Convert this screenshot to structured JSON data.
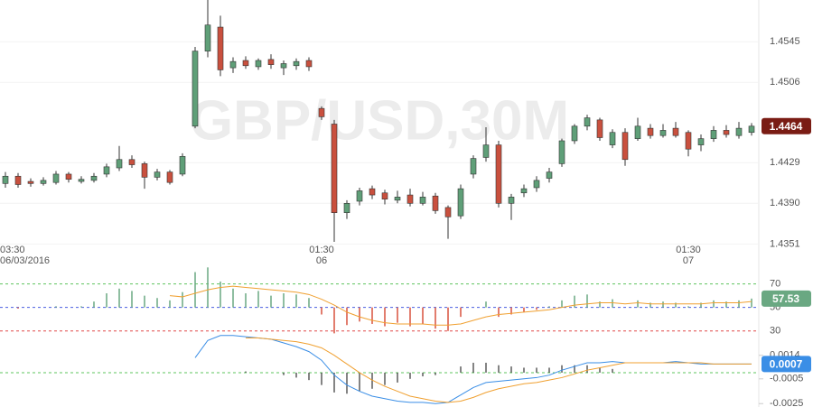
{
  "chart_data": [
    {
      "type": "candlestick",
      "title": "GBP/USD,30M",
      "categories": [
        "03:30",
        null,
        null,
        null,
        null,
        null,
        null,
        null,
        null,
        null,
        null,
        null,
        null,
        null,
        null,
        null,
        null,
        null,
        null,
        null,
        null,
        null,
        null,
        null,
        null,
        "01:30",
        null,
        null,
        null,
        null,
        null,
        null,
        null,
        null,
        null,
        null,
        null,
        null,
        null,
        null,
        null,
        null,
        null,
        null,
        null,
        null,
        null,
        null,
        null,
        null,
        null,
        null,
        null,
        null,
        "01:30",
        null,
        null,
        null,
        null,
        null
      ],
      "date_labels": [
        "06/03/2016",
        null,
        null,
        null,
        null,
        null,
        null,
        null,
        null,
        null,
        null,
        null,
        null,
        null,
        null,
        null,
        null,
        null,
        null,
        null,
        null,
        null,
        null,
        null,
        null,
        "06",
        null,
        null,
        null,
        null,
        null,
        null,
        null,
        null,
        null,
        null,
        null,
        null,
        null,
        null,
        null,
        null,
        null,
        null,
        null,
        null,
        null,
        null,
        null,
        null,
        null,
        null,
        null,
        null,
        "07",
        null,
        null,
        null,
        null,
        null
      ],
      "open": [
        1.4409,
        1.4416,
        1.4411,
        1.4409,
        1.441,
        1.4418,
        1.4411,
        1.4412,
        1.4418,
        1.4424,
        1.4432,
        1.4428,
        1.4415,
        1.442,
        1.4418,
        1.4464,
        1.4536,
        1.4559,
        1.452,
        1.4527,
        1.4521,
        1.4528,
        1.452,
        1.4522,
        1.4527,
        1.4481,
        1.4466,
        1.4381,
        1.4392,
        1.4404,
        1.44,
        1.4393,
        1.4398,
        1.439,
        1.4397,
        1.4386,
        1.4378,
        1.4418,
        1.4434,
        1.4446,
        1.439,
        1.44,
        1.4405,
        1.4414,
        1.4428,
        1.445,
        1.4464,
        1.447,
        1.4446,
        1.4458,
        1.4452,
        1.4462,
        1.4455,
        1.4462,
        1.4458,
        1.4446,
        1.4452,
        1.446,
        1.4455,
        1.4458
      ],
      "high": [
        1.442,
        1.4419,
        1.4414,
        1.4415,
        1.4421,
        1.442,
        1.4416,
        1.4419,
        1.4428,
        1.4445,
        1.4436,
        1.443,
        1.4423,
        1.4422,
        1.4438,
        1.454,
        1.4585,
        1.457,
        1.453,
        1.4531,
        1.4529,
        1.4533,
        1.4527,
        1.4529,
        1.453,
        1.4483,
        1.447,
        1.4393,
        1.4405,
        1.4407,
        1.4403,
        1.4402,
        1.4404,
        1.4401,
        1.44,
        1.4388,
        1.4408,
        1.4436,
        1.4463,
        1.445,
        1.4399,
        1.4408,
        1.4416,
        1.4424,
        1.4452,
        1.4466,
        1.4475,
        1.4472,
        1.4461,
        1.4462,
        1.4472,
        1.4466,
        1.4466,
        1.4468,
        1.446,
        1.4456,
        1.4464,
        1.4465,
        1.4468,
        1.4467
      ],
      "low": [
        1.4405,
        1.4405,
        1.4406,
        1.4407,
        1.4408,
        1.441,
        1.4409,
        1.441,
        1.4415,
        1.4421,
        1.4424,
        1.4404,
        1.4412,
        1.4408,
        1.4416,
        1.4462,
        1.453,
        1.4512,
        1.4515,
        1.4519,
        1.4518,
        1.4519,
        1.4513,
        1.4518,
        1.4517,
        1.447,
        1.4353,
        1.4375,
        1.4388,
        1.4394,
        1.4389,
        1.439,
        1.4387,
        1.4388,
        1.438,
        1.4356,
        1.4375,
        1.4414,
        1.443,
        1.4386,
        1.4374,
        1.4396,
        1.4401,
        1.441,
        1.4425,
        1.4447,
        1.446,
        1.445,
        1.4443,
        1.4426,
        1.445,
        1.4452,
        1.4453,
        1.4453,
        1.4435,
        1.444,
        1.4449,
        1.4453,
        1.4452,
        1.4455
      ],
      "close": [
        1.4416,
        1.4408,
        1.4409,
        1.4412,
        1.4418,
        1.4413,
        1.4413,
        1.4416,
        1.4425,
        1.4432,
        1.4427,
        1.4415,
        1.442,
        1.441,
        1.4435,
        1.4536,
        1.4561,
        1.4518,
        1.4526,
        1.4522,
        1.4527,
        1.4523,
        1.4524,
        1.4526,
        1.4521,
        1.4473,
        1.4381,
        1.439,
        1.4402,
        1.4398,
        1.4394,
        1.4396,
        1.439,
        1.4396,
        1.4383,
        1.4377,
        1.4404,
        1.4433,
        1.4446,
        1.439,
        1.4396,
        1.4404,
        1.4412,
        1.442,
        1.445,
        1.4464,
        1.4472,
        1.4453,
        1.4458,
        1.4432,
        1.4464,
        1.4455,
        1.446,
        1.4455,
        1.4442,
        1.4452,
        1.446,
        1.4456,
        1.4462,
        1.4464
      ],
      "ylim": [
        1.4334,
        1.4585
      ],
      "yticks": [
        1.4351,
        {
          "value": 1.439,
          "label": "1.4390"
        },
        1.4429,
        1.4506,
        1.4545
      ],
      "up_color": "#5f9f78",
      "down_color": "#c9503e",
      "last_value": 1.4464,
      "last_color": "#7a1c14"
    },
    {
      "type": "rsi",
      "values": [
        50,
        49,
        50,
        50,
        51,
        50,
        51,
        55,
        62,
        66,
        64,
        60,
        58,
        56,
        63,
        80,
        84,
        72,
        66,
        62,
        64,
        60,
        62,
        61,
        58,
        44,
        28,
        35,
        38,
        36,
        34,
        37,
        34,
        36,
        32,
        30,
        42,
        50,
        55,
        42,
        44,
        46,
        48,
        51,
        56,
        60,
        61,
        55,
        57,
        50,
        56,
        54,
        55,
        54,
        51,
        54,
        56,
        55,
        56,
        57.53
      ],
      "signal": [
        null,
        null,
        null,
        null,
        null,
        null,
        null,
        null,
        null,
        null,
        null,
        null,
        null,
        60,
        59,
        62,
        65,
        67,
        68,
        67,
        66,
        65,
        64,
        63,
        61,
        57,
        52,
        46,
        42,
        39,
        37,
        36,
        36,
        36,
        35,
        35,
        36,
        39,
        42,
        44,
        45,
        46,
        47,
        48,
        50,
        52,
        53,
        54,
        54,
        53,
        54,
        53,
        53,
        53,
        53,
        53,
        54,
        54,
        54,
        55
      ],
      "ylim": [
        26,
        85
      ],
      "yticks": [
        70,
        50,
        30
      ],
      "level_colors": [
        "#5ec45e",
        "#4a5ee0",
        "#e04848"
      ],
      "up_color": "#6aa882",
      "down_color": "#d9523f",
      "signal_color": "#f0a030",
      "last_value": 57.53,
      "last_color": "#6aa882"
    },
    {
      "type": "macd",
      "macd": [
        null,
        null,
        null,
        null,
        null,
        null,
        null,
        null,
        null,
        null,
        null,
        null,
        null,
        null,
        null,
        0.0012,
        0.0026,
        0.003,
        0.003,
        0.0029,
        0.0028,
        0.0027,
        0.0024,
        0.0021,
        0.0017,
        0.001,
        -0.0002,
        -0.001,
        -0.0015,
        -0.0019,
        -0.0021,
        -0.0023,
        -0.0024,
        -0.0024,
        -0.0025,
        -0.0024,
        -0.0018,
        -0.0012,
        -0.0008,
        -0.0007,
        -0.0006,
        -0.0005,
        -0.0004,
        -0.0002,
        0.0002,
        0.0005,
        0.0008,
        0.0008,
        0.0009,
        0.0008,
        0.0008,
        0.0008,
        0.0008,
        0.0009,
        0.0008,
        0.0007,
        0.0007,
        0.0007,
        0.0007,
        0.0007
      ],
      "signal": [
        null,
        null,
        null,
        null,
        null,
        null,
        null,
        null,
        null,
        null,
        null,
        null,
        null,
        null,
        null,
        null,
        null,
        null,
        null,
        0.0028,
        0.0028,
        0.0027,
        0.0026,
        0.0025,
        0.0023,
        0.002,
        0.0014,
        0.0007,
        0,
        -0.0006,
        -0.0011,
        -0.0015,
        -0.0019,
        -0.0021,
        -0.0023,
        -0.0024,
        -0.0023,
        -0.002,
        -0.0016,
        -0.0013,
        -0.0011,
        -0.0009,
        -0.0008,
        -0.0006,
        -0.0004,
        -0.0001,
        0.0002,
        0.0004,
        0.0006,
        0.0008,
        0.0008,
        0.0008,
        0.0008,
        0.0008,
        0.0008,
        0.0008,
        0.0007,
        0.0007,
        0.0007,
        0.0007
      ],
      "histogram": [
        null,
        null,
        null,
        null,
        null,
        null,
        null,
        null,
        null,
        null,
        null,
        null,
        null,
        null,
        null,
        null,
        null,
        null,
        null,
        0.0001,
        0,
        0,
        -0.0002,
        -0.0004,
        -0.0006,
        -0.001,
        -0.0016,
        -0.0017,
        -0.0015,
        -0.0013,
        -0.001,
        -0.0008,
        -0.0005,
        -0.0003,
        -0.0002,
        0,
        0.0005,
        0.0008,
        0.0008,
        0.0006,
        0.0005,
        0.0004,
        0.0004,
        0.0004,
        0.0006,
        0.0006,
        0.0006,
        0.0004,
        0.0003,
        0,
        0,
        0,
        0,
        0,
        0,
        0,
        0,
        0,
        0,
        0
      ],
      "ylim": [
        -0.0027,
        0.0024
      ],
      "yticks": [
        0.0014,
        -0.0005,
        -0.0025
      ],
      "macd_color": "#3a8ee6",
      "signal_color": "#f0a030",
      "hist_color": "#333333",
      "zero_color": "#5ec45e",
      "last_value": 0.0007,
      "last_color": "#3a8ee6"
    }
  ]
}
